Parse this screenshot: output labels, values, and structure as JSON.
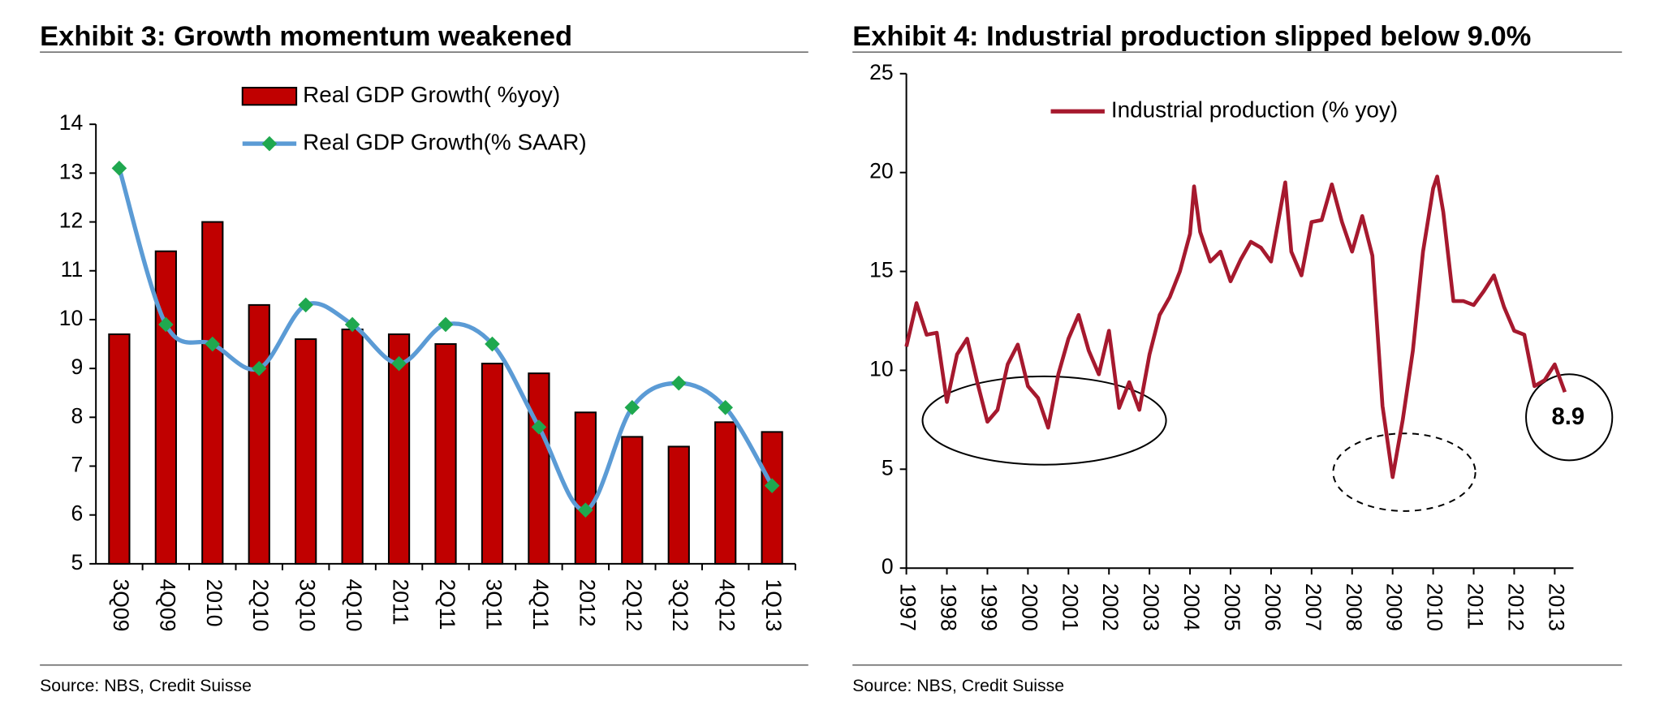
{
  "chart_data": [
    {
      "type": "bar",
      "title": "Exhibit 3: Growth momentum weakened",
      "source": "Source: NBS, Credit Suisse",
      "categories": [
        "3Q09",
        "4Q09",
        "2010",
        "2Q10",
        "3Q10",
        "4Q10",
        "2011",
        "2Q11",
        "3Q11",
        "4Q11",
        "2012",
        "2Q12",
        "3Q12",
        "4Q12",
        "1Q13"
      ],
      "series": [
        {
          "name": "Real GDP Growth( %yoy)",
          "type": "bar",
          "color": "#c00000",
          "values": [
            9.7,
            11.4,
            12.0,
            10.3,
            9.6,
            9.8,
            9.7,
            9.5,
            9.1,
            8.9,
            8.1,
            7.6,
            7.4,
            7.9,
            7.7
          ]
        },
        {
          "name": "Real GDP Growth(% SAAR)",
          "type": "line",
          "color": "#5b9bd5",
          "marker_color": "#1fa84f",
          "values": [
            13.1,
            9.9,
            9.5,
            9.0,
            10.3,
            9.9,
            9.1,
            9.9,
            9.5,
            7.8,
            6.1,
            8.2,
            8.7,
            8.2,
            6.6
          ]
        }
      ],
      "ylim": [
        5,
        14
      ],
      "yticks": [
        5,
        6,
        7,
        8,
        9,
        10,
        11,
        12,
        13,
        14
      ],
      "legend": "top"
    },
    {
      "type": "line",
      "title": "Exhibit 4: Industrial production slipped below 9.0%",
      "source": "Source: NBS, Credit Suisse",
      "annotation": "8.9",
      "x": [
        1997.0,
        1997.25,
        1997.5,
        1997.75,
        1998.0,
        1998.25,
        1998.5,
        1998.75,
        1999.0,
        1999.25,
        1999.5,
        1999.75,
        2000.0,
        2000.25,
        2000.5,
        2000.75,
        2001.0,
        2001.25,
        2001.5,
        2001.75,
        2002.0,
        2002.25,
        2002.5,
        2002.75,
        2003.0,
        2003.25,
        2003.5,
        2003.75,
        2004.0,
        2004.1,
        2004.25,
        2004.5,
        2004.75,
        2005.0,
        2005.25,
        2005.5,
        2005.75,
        2006.0,
        2006.35,
        2006.5,
        2006.75,
        2007.0,
        2007.25,
        2007.5,
        2007.75,
        2008.0,
        2008.25,
        2008.5,
        2008.75,
        2009.0,
        2009.25,
        2009.5,
        2009.75,
        2010.0,
        2010.1,
        2010.25,
        2010.5,
        2010.75,
        2011.0,
        2011.25,
        2011.5,
        2011.75,
        2012.0,
        2012.25,
        2012.5,
        2012.75,
        2013.0,
        2013.25
      ],
      "series": [
        {
          "name": "Industrial production (% yoy)",
          "color": "#a6192e",
          "values": [
            11.2,
            13.4,
            11.8,
            11.9,
            8.4,
            10.8,
            11.6,
            9.4,
            7.4,
            8.0,
            10.3,
            11.3,
            9.2,
            8.6,
            7.1,
            9.8,
            11.6,
            12.8,
            11.0,
            9.8,
            12.0,
            8.1,
            9.4,
            8.0,
            10.8,
            12.8,
            13.7,
            15.0,
            16.9,
            19.3,
            17.0,
            15.5,
            16.0,
            14.5,
            15.6,
            16.5,
            16.2,
            15.5,
            19.5,
            16.0,
            14.8,
            17.5,
            17.6,
            19.4,
            17.5,
            16.0,
            17.8,
            15.8,
            8.2,
            4.6,
            7.5,
            11.0,
            16.0,
            19.2,
            19.8,
            18.0,
            13.5,
            13.5,
            13.3,
            14.0,
            14.8,
            13.2,
            12.0,
            11.8,
            9.2,
            9.5,
            10.3,
            8.9
          ]
        }
      ],
      "xlim": [
        1997,
        2013.25
      ],
      "xticks": [
        1997,
        1998,
        1999,
        2000,
        2001,
        2002,
        2003,
        2004,
        2005,
        2006,
        2007,
        2008,
        2009,
        2010,
        2011,
        2012,
        2013
      ],
      "ylim": [
        0,
        25
      ],
      "yticks": [
        0,
        5,
        10,
        15,
        20,
        25
      ],
      "legend": "top"
    }
  ]
}
